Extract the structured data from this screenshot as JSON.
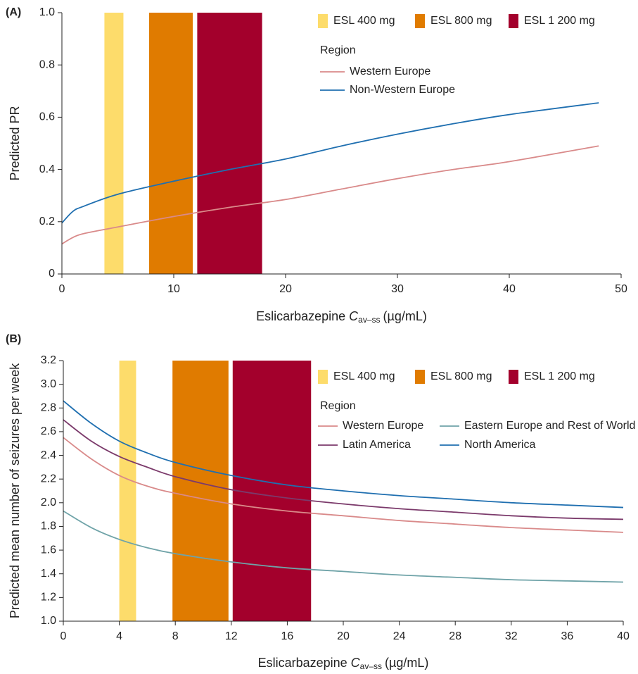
{
  "chart_data": [
    {
      "type": "line",
      "panel_label": "(A)",
      "y_label": "Predicted PR",
      "x_label": {
        "prefix": "Eslicarbazepine",
        "symbol": "C",
        "subscript": "av–ss",
        "suffix": "(µg/mL)"
      },
      "xlim": [
        0,
        50
      ],
      "xticks": [
        0,
        10,
        20,
        30,
        40,
        50
      ],
      "ylim": [
        0,
        1.0
      ],
      "yticks": [
        0,
        0.2,
        0.4,
        0.6,
        0.8,
        {
          "value": 1.0,
          "label": "1.0"
        }
      ],
      "bands": [
        {
          "name": "ESL 400 mg",
          "color": "#fddc6b",
          "range": [
            3.8,
            5.5
          ]
        },
        {
          "name": "ESL 800 mg",
          "color": "#e07b00",
          "range": [
            7.8,
            11.7
          ]
        },
        {
          "name": "ESL 1 200 mg",
          "color": "#a3002c",
          "range": [
            12.1,
            17.9
          ]
        }
      ],
      "legend_title": "Region",
      "x": [
        0,
        1,
        2,
        5,
        10,
        15,
        20,
        25,
        30,
        35,
        40,
        48
      ],
      "series": [
        {
          "name": "Western Europe",
          "color": "#d98a8a",
          "values": [
            0.115,
            0.14,
            0.155,
            0.18,
            0.22,
            0.255,
            0.285,
            0.325,
            0.365,
            0.4,
            0.43,
            0.49
          ]
        },
        {
          "name": "Non-Western Europe",
          "color": "#1f6fb0",
          "values": [
            0.195,
            0.24,
            0.26,
            0.305,
            0.355,
            0.4,
            0.44,
            0.49,
            0.535,
            0.575,
            0.61,
            0.655
          ]
        }
      ]
    },
    {
      "type": "line",
      "panel_label": "(B)",
      "y_label": "Predicted mean number of seizures per week",
      "x_label": {
        "prefix": "Eslicarbazepine",
        "symbol": "C",
        "subscript": "av–ss",
        "suffix": "(µg/mL)"
      },
      "xlim": [
        0,
        40
      ],
      "xticks": [
        0,
        4,
        8,
        12,
        16,
        20,
        24,
        28,
        32,
        36,
        40
      ],
      "ylim": [
        1.0,
        3.2
      ],
      "yticks": [
        {
          "value": 1.0,
          "label": "1.0"
        },
        1.2,
        1.4,
        1.6,
        1.8,
        {
          "value": 2.0,
          "label": "2.0"
        },
        2.2,
        2.4,
        2.6,
        2.8,
        {
          "value": 3.0,
          "label": "3.0"
        },
        3.2
      ],
      "bands": [
        {
          "name": "ESL 400 mg",
          "color": "#fddc6b",
          "range": [
            4.0,
            5.2
          ]
        },
        {
          "name": "ESL 800 mg",
          "color": "#e07b00",
          "range": [
            7.8,
            11.8
          ]
        },
        {
          "name": "ESL 1 200 mg",
          "color": "#a3002c",
          "range": [
            12.1,
            17.7
          ]
        }
      ],
      "legend_title": "Region",
      "x": [
        0,
        2,
        4,
        6,
        8,
        12,
        16,
        20,
        24,
        28,
        32,
        36,
        40
      ],
      "series": [
        {
          "name": "Western Europe",
          "color": "#d98a8a",
          "values": [
            2.55,
            2.37,
            2.23,
            2.14,
            2.08,
            1.99,
            1.93,
            1.89,
            1.85,
            1.82,
            1.79,
            1.77,
            1.75
          ]
        },
        {
          "name": "Eastern Europe and Rest of World",
          "color": "#6fa3a8",
          "values": [
            1.93,
            1.79,
            1.69,
            1.62,
            1.57,
            1.5,
            1.45,
            1.42,
            1.39,
            1.37,
            1.35,
            1.34,
            1.33
          ]
        },
        {
          "name": "Latin America",
          "color": "#7b3a6b",
          "values": [
            2.7,
            2.52,
            2.39,
            2.3,
            2.22,
            2.11,
            2.04,
            1.99,
            1.95,
            1.92,
            1.89,
            1.87,
            1.86
          ]
        },
        {
          "name": "North America",
          "color": "#1f6fb0",
          "values": [
            2.86,
            2.67,
            2.52,
            2.42,
            2.34,
            2.23,
            2.15,
            2.1,
            2.06,
            2.03,
            2,
            1.98,
            1.96
          ]
        }
      ]
    }
  ]
}
